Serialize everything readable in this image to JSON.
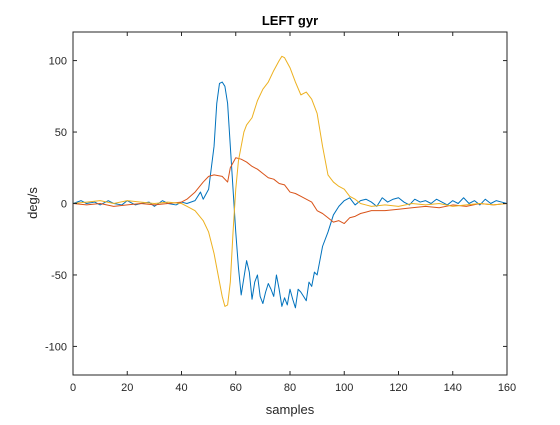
{
  "chart_data": {
    "type": "line",
    "title": "LEFT gyr",
    "xlabel": "samples",
    "ylabel": "deg/s",
    "xlim": [
      0,
      160
    ],
    "ylim": [
      -120,
      120
    ],
    "xticks": [
      0,
      20,
      40,
      60,
      80,
      100,
      120,
      140,
      160
    ],
    "yticks": [
      -100,
      -50,
      0,
      50,
      100
    ],
    "grid": false,
    "legend": "none",
    "axes_color": "#262626",
    "series": [
      {
        "color": "#0072BD",
        "x": [
          0,
          3,
          5,
          8,
          10,
          13,
          15,
          18,
          20,
          23,
          25,
          28,
          30,
          33,
          35,
          38,
          40,
          42,
          45,
          47,
          48,
          50,
          52,
          53,
          54,
          55,
          56,
          57,
          58,
          59,
          60,
          61,
          62,
          63,
          64,
          65,
          66,
          67,
          68,
          69,
          70,
          71,
          72,
          73,
          74,
          75,
          76,
          77,
          78,
          79,
          80,
          81,
          82,
          83,
          84,
          85,
          86,
          87,
          88,
          89,
          90,
          91,
          92,
          94,
          96,
          98,
          100,
          102,
          104,
          106,
          108,
          110,
          112,
          114,
          116,
          118,
          120,
          122,
          124,
          126,
          128,
          130,
          132,
          134,
          136,
          138,
          140,
          142,
          144,
          146,
          148,
          150,
          152,
          154,
          156,
          158,
          160
        ],
        "y": [
          0,
          2,
          0,
          1,
          -1,
          2,
          0,
          -1,
          2,
          -1,
          0,
          1,
          -2,
          2,
          0,
          -1,
          1,
          0,
          2,
          8,
          3,
          10,
          40,
          70,
          84,
          85,
          82,
          70,
          40,
          10,
          -20,
          -45,
          -64,
          -52,
          -40,
          -48,
          -67,
          -55,
          -50,
          -65,
          -70,
          -62,
          -56,
          -60,
          -65,
          -50,
          -60,
          -72,
          -66,
          -71,
          -60,
          -67,
          -73,
          -60,
          -62,
          -65,
          -68,
          -55,
          -58,
          -48,
          -50,
          -40,
          -30,
          -20,
          -8,
          -2,
          2,
          4,
          -1,
          2,
          3,
          1,
          -2,
          4,
          1,
          3,
          4,
          1,
          -1,
          3,
          1,
          2,
          0,
          3,
          1,
          -1,
          2,
          0,
          4,
          0,
          2,
          -1,
          3,
          0,
          2,
          1,
          0
        ]
      },
      {
        "color": "#D95319",
        "x": [
          0,
          5,
          10,
          15,
          20,
          25,
          30,
          35,
          40,
          42,
          45,
          48,
          50,
          52,
          55,
          57,
          58,
          60,
          62,
          64,
          66,
          68,
          70,
          72,
          74,
          76,
          78,
          80,
          82,
          84,
          86,
          88,
          90,
          92,
          94,
          96,
          98,
          100,
          102,
          104,
          106,
          108,
          110,
          115,
          120,
          125,
          130,
          135,
          140,
          145,
          150,
          155,
          160
        ],
        "y": [
          0,
          -1,
          0,
          -2,
          -1,
          0,
          -1,
          0,
          1,
          3,
          8,
          15,
          19,
          20,
          19,
          15,
          25,
          32,
          31,
          29,
          26,
          24,
          21,
          18,
          17,
          14,
          13,
          8,
          7,
          5,
          3,
          1,
          -5,
          -7,
          -10,
          -13,
          -12,
          -14,
          -10,
          -9,
          -7,
          -6,
          -5,
          -5,
          -4,
          -3,
          -2,
          -3,
          -1,
          -2,
          0,
          -1,
          0
        ]
      },
      {
        "color": "#EDB120",
        "x": [
          0,
          5,
          10,
          15,
          20,
          25,
          30,
          35,
          40,
          42,
          45,
          48,
          50,
          52,
          54,
          55,
          56,
          57,
          58,
          59,
          60,
          61,
          62,
          63,
          64,
          66,
          68,
          70,
          72,
          74,
          76,
          77,
          78,
          80,
          82,
          84,
          86,
          88,
          90,
          92,
          94,
          96,
          98,
          100,
          102,
          104,
          106,
          108,
          110,
          115,
          120,
          125,
          130,
          135,
          140,
          145,
          150,
          155,
          160
        ],
        "y": [
          0,
          1,
          2,
          0,
          2,
          1,
          0,
          1,
          0,
          -2,
          -5,
          -12,
          -20,
          -35,
          -55,
          -65,
          -72,
          -71,
          -55,
          -20,
          10,
          30,
          40,
          50,
          55,
          60,
          72,
          80,
          85,
          93,
          100,
          103,
          102,
          95,
          85,
          76,
          78,
          73,
          63,
          40,
          20,
          15,
          12,
          10,
          5,
          3,
          0,
          -1,
          -2,
          -1,
          -2,
          0,
          -1,
          0,
          -2,
          -1,
          0,
          -1,
          0
        ]
      }
    ]
  }
}
